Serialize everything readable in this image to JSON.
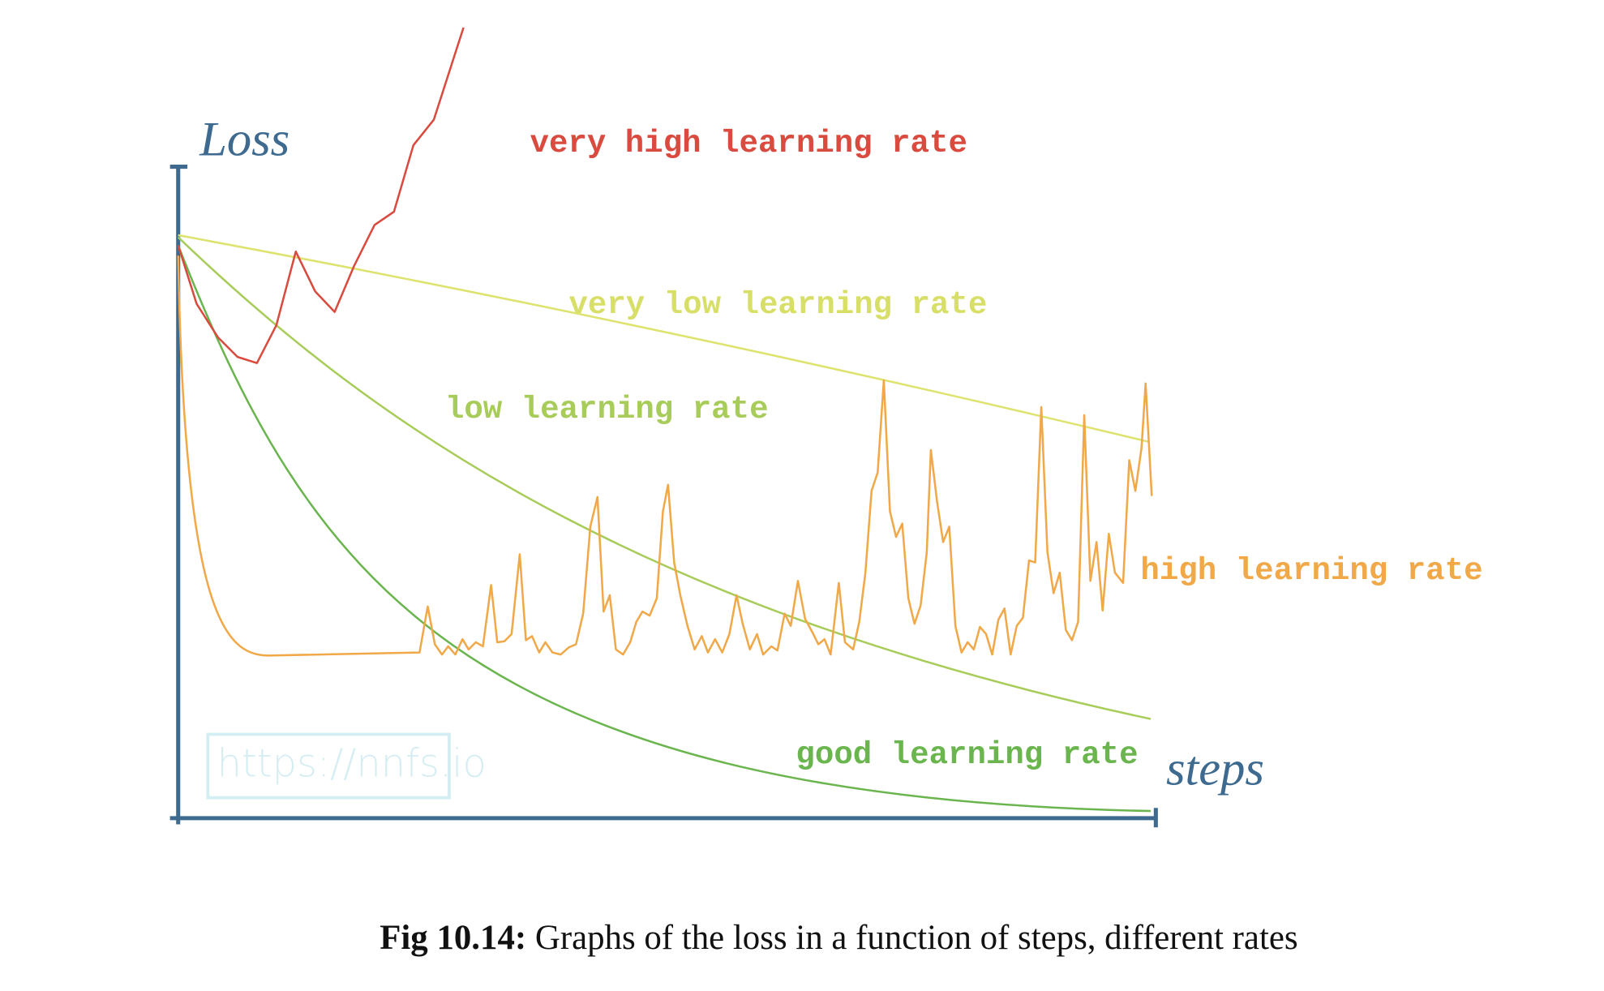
{
  "figure": {
    "y_axis_label": "Loss",
    "x_axis_label": "steps",
    "curve_labels": {
      "very_high": "very high learning rate",
      "very_low": "very low learning rate",
      "low": "low learning rate",
      "high": "high learning rate",
      "good": "good learning rate"
    },
    "watermark": "https://nnfs.io"
  },
  "caption": {
    "label": "Fig 10.14:",
    "text": " Graphs of the loss in a function of steps, different rates"
  }
}
